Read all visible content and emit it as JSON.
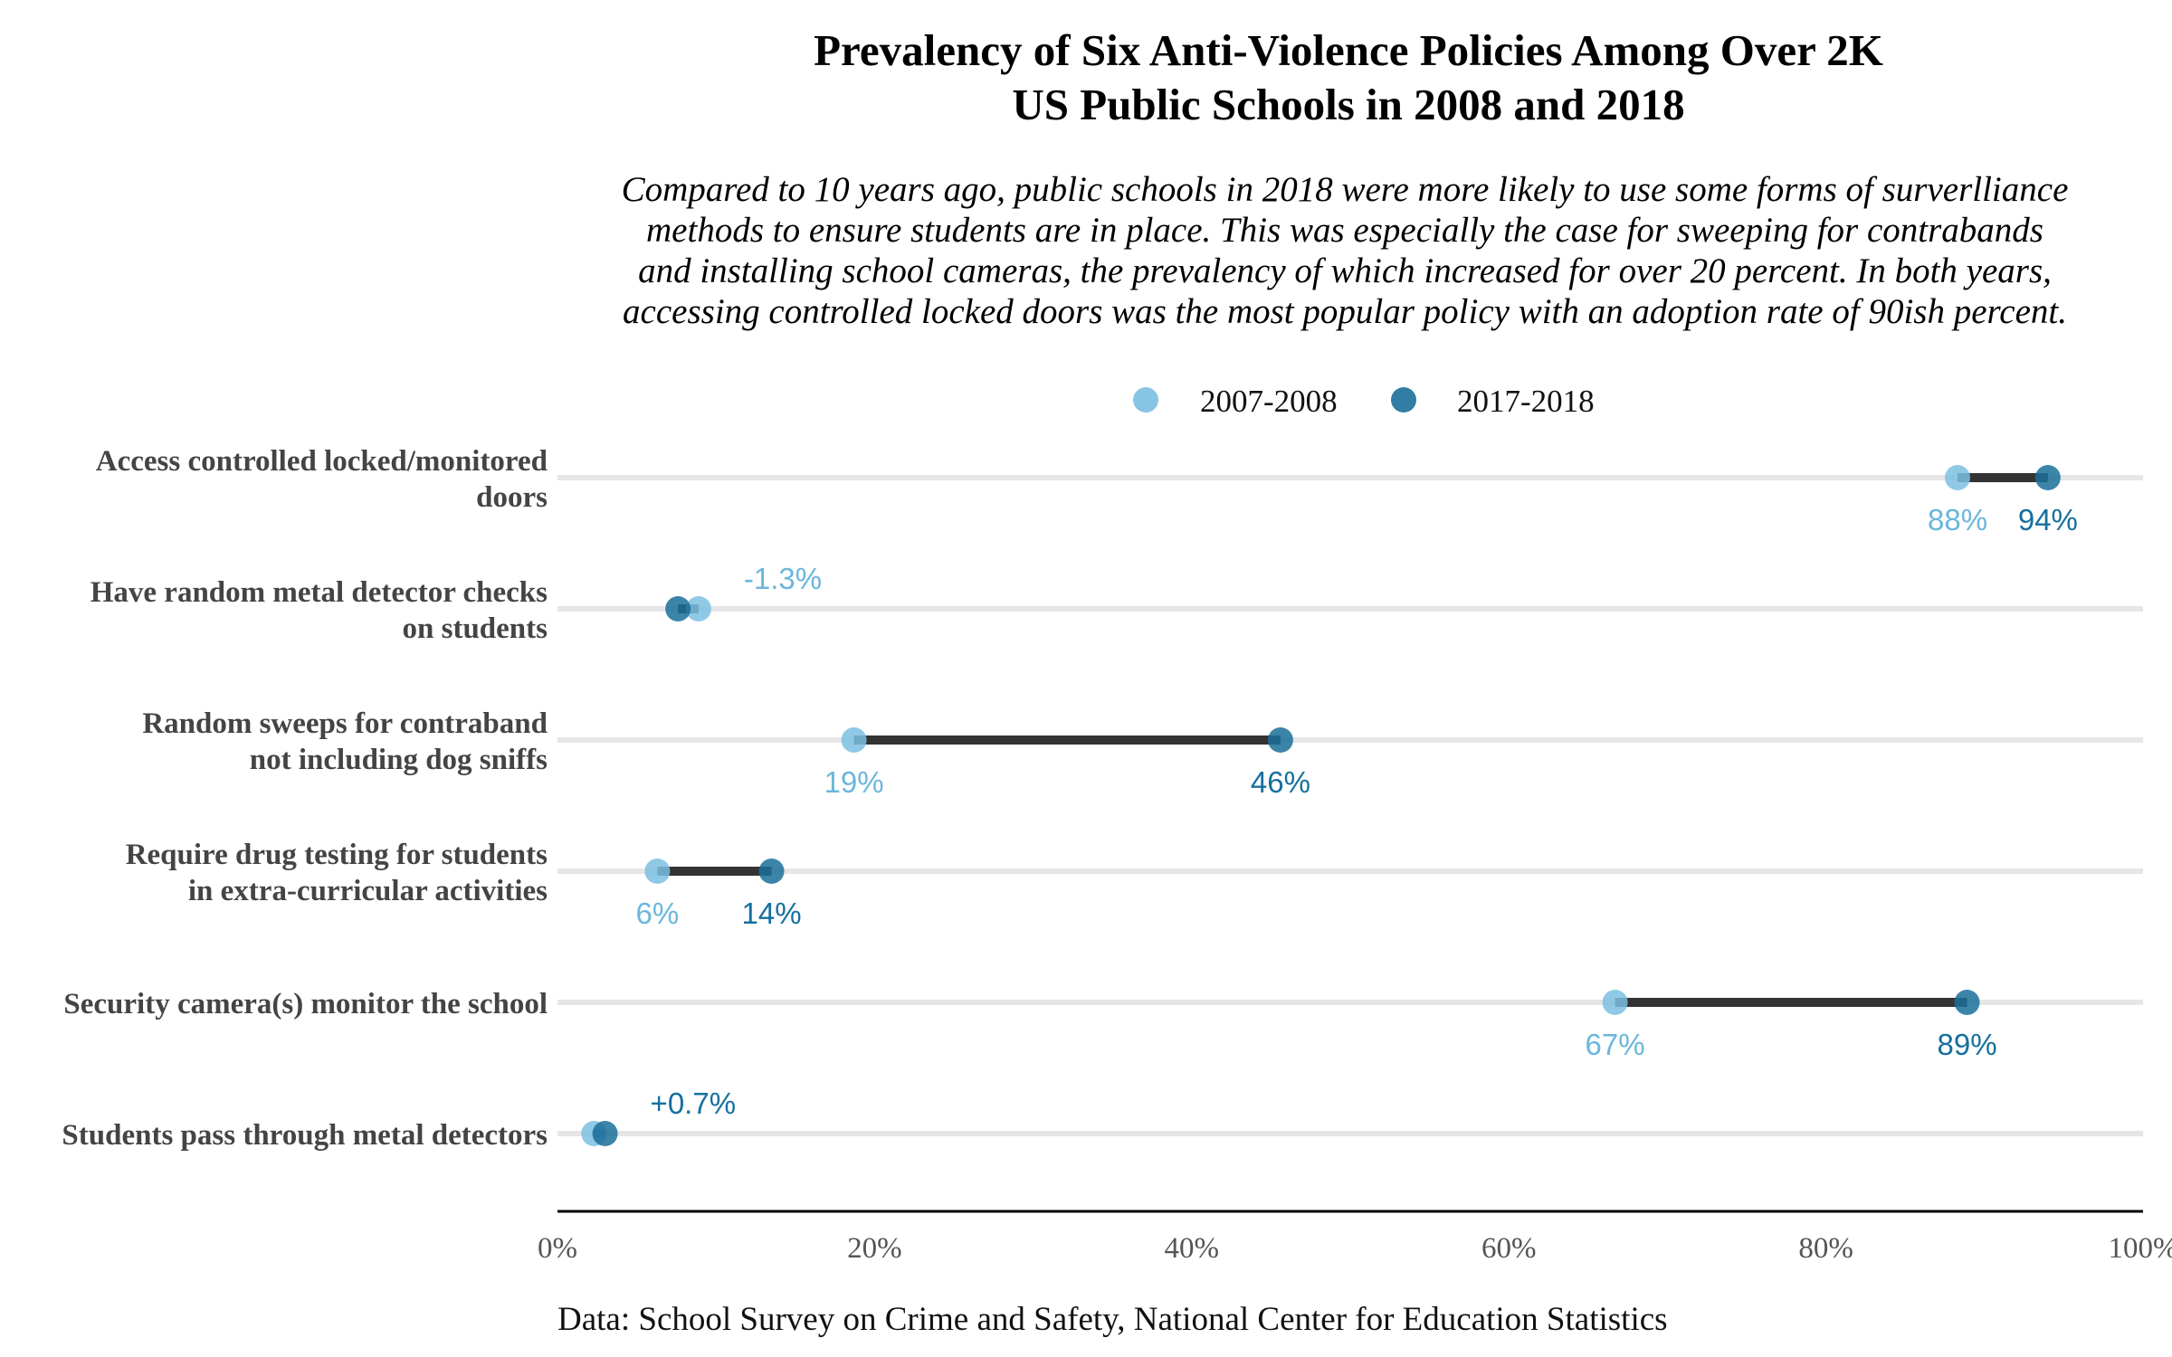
{
  "title_lines": [
    "Prevalency of Six Anti-Violence Policies Among Over 2K",
    "US Public Schools in 2008 and 2018"
  ],
  "subtitle_lines": [
    "Compared to 10 years ago, public schools in 2018 were more likely to use some forms of surverlliance",
    "methods to ensure students are in place. This was especially the case for sweeping for contrabands",
    "and installing school cameras, the prevalency of which increased for over 20 percent. In both years,",
    "accessing controlled locked doors was the most popular policy with an adoption rate of 90ish percent."
  ],
  "caption": "Data: School Survey on Crime and Safety, National Center for Education Statistics",
  "colors": {
    "year_2008": "#7bbfe2",
    "year_2018": "#1b6f9a",
    "label_2008": "#6bb6dc",
    "label_2018": "#15709e",
    "segment": "#333333",
    "gridline": "#e6e6e6",
    "axis": "#000000"
  },
  "chart_data": {
    "type": "dumbbell",
    "xlim": [
      0,
      100
    ],
    "x_ticks": [
      0,
      20,
      40,
      60,
      80,
      100
    ],
    "x_tick_labels": [
      "0%",
      "20%",
      "40%",
      "60%",
      "80%",
      "100%"
    ],
    "legend": {
      "position": "top",
      "entries": [
        {
          "name": "2007-2008",
          "key": "year_2008"
        },
        {
          "name": "2017-2018",
          "key": "year_2018"
        }
      ]
    },
    "categories": [
      {
        "label_lines": [
          "Access controlled locked/monitored",
          "doors"
        ],
        "v2008": 88.3,
        "v2018": 94.0,
        "label_2008": "88%",
        "label_2018": "94%",
        "annotation": null
      },
      {
        "label_lines": [
          "Have random metal detector checks",
          "on students"
        ],
        "v2008": 8.9,
        "v2018": 7.6,
        "label_2008": null,
        "label_2018": null,
        "annotation": {
          "text": "-1.3%",
          "color_key": "label_2008"
        }
      },
      {
        "label_lines": [
          "Random sweeps for contraband",
          "not including dog sniffs"
        ],
        "v2008": 18.7,
        "v2018": 45.6,
        "label_2008": "19%",
        "label_2018": "46%",
        "annotation": null
      },
      {
        "label_lines": [
          "Require drug testing for students",
          "in extra-curricular activities"
        ],
        "v2008": 6.3,
        "v2018": 13.5,
        "label_2008": "6%",
        "label_2018": "14%",
        "annotation": null
      },
      {
        "label_lines": [
          "Security camera(s) monitor the school"
        ],
        "v2008": 66.7,
        "v2018": 88.9,
        "label_2008": "67%",
        "label_2018": "89%",
        "annotation": null
      },
      {
        "label_lines": [
          "Students pass through metal detectors"
        ],
        "v2008": 2.3,
        "v2018": 3.0,
        "label_2008": null,
        "label_2018": null,
        "annotation": {
          "text": "+0.7%",
          "color_key": "label_2018"
        }
      }
    ]
  }
}
